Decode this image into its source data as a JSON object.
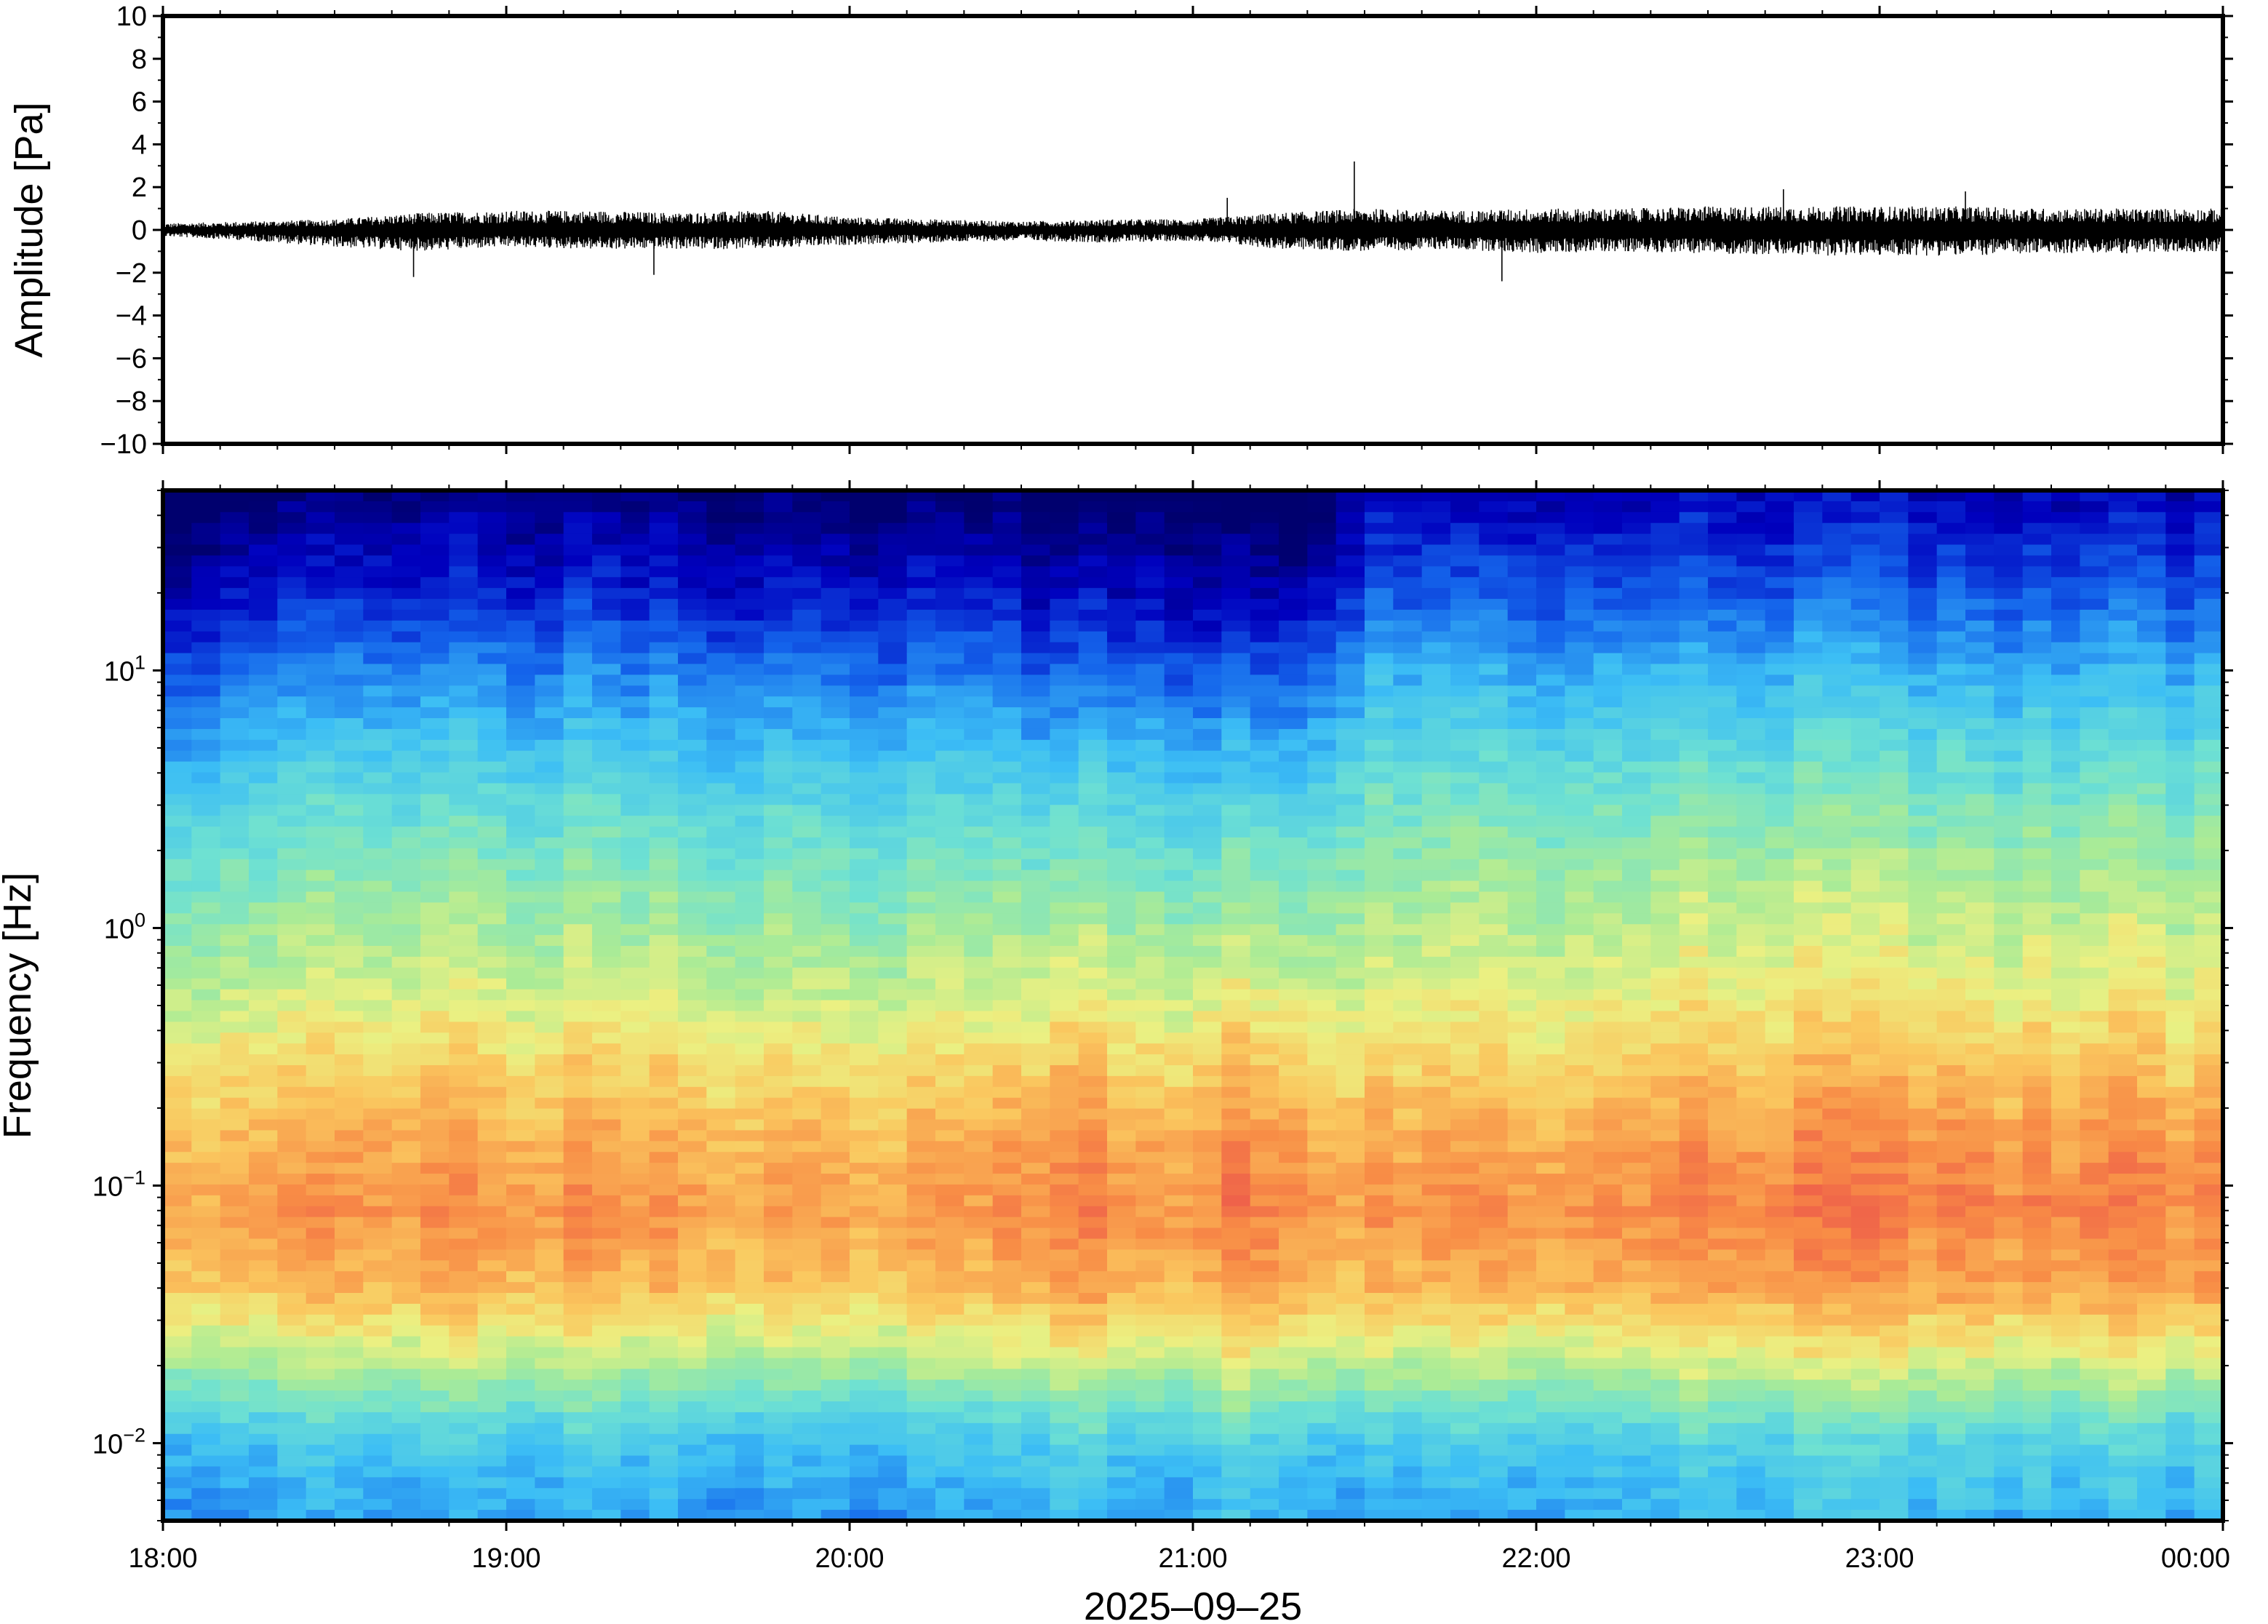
{
  "chart_data": [
    {
      "type": "line",
      "panel": "waveform",
      "ylabel": "Amplitude [Pa]",
      "ylim": [
        -10,
        10
      ],
      "yticks": [
        10,
        8,
        6,
        4,
        2,
        0,
        -2,
        -4,
        -6,
        -8,
        -10
      ],
      "ytick_labels": [
        "10",
        "8",
        "6",
        "4",
        "2",
        "0",
        "−2",
        "−4",
        "−6",
        "−8",
        "−10"
      ],
      "x_range": [
        "18:00",
        "00:00"
      ],
      "series": [
        {
          "color": "#000000",
          "x_hours": [
            0,
            0.25,
            0.5,
            0.75,
            1.0,
            1.25,
            1.5,
            1.75,
            2.0,
            2.25,
            2.5,
            2.75,
            3.0,
            3.25,
            3.5,
            3.75,
            4.0,
            4.25,
            4.5,
            4.75,
            5.0,
            5.25,
            5.5,
            5.75,
            6.0
          ],
          "envelope_max": [
            0.3,
            0.4,
            0.5,
            0.8,
            0.9,
            0.9,
            0.8,
            0.9,
            0.6,
            0.5,
            0.4,
            0.5,
            0.5,
            0.8,
            1.0,
            0.9,
            1.0,
            1.0,
            1.1,
            1.1,
            1.1,
            1.1,
            1.0,
            1.0,
            1.0
          ],
          "envelope_min": [
            -0.3,
            -0.5,
            -0.8,
            -1.0,
            -0.8,
            -0.9,
            -0.9,
            -0.9,
            -0.7,
            -0.6,
            -0.5,
            -0.6,
            -0.5,
            -0.9,
            -1.0,
            -0.9,
            -1.1,
            -1.0,
            -1.1,
            -1.2,
            -1.2,
            -1.2,
            -1.1,
            -1.1,
            -1.0
          ],
          "spikes": [
            {
              "x_hours": 3.47,
              "y": 3.2
            },
            {
              "x_hours": 0.73,
              "y": -2.2
            },
            {
              "x_hours": 1.43,
              "y": -2.1
            },
            {
              "x_hours": 3.1,
              "y": 1.5
            },
            {
              "x_hours": 3.9,
              "y": -2.4
            },
            {
              "x_hours": 4.72,
              "y": 1.9
            },
            {
              "x_hours": 5.25,
              "y": 1.8
            }
          ]
        }
      ]
    },
    {
      "type": "heatmap",
      "panel": "spectrogram",
      "ylabel": "Frequency [Hz]",
      "xlabel": "2025–09–25",
      "yscale": "log",
      "ylim": [
        0.005,
        50
      ],
      "yticks": [
        10,
        1,
        0.1,
        0.01
      ],
      "ytick_labels": [
        {
          "base": "10",
          "exp": "1"
        },
        {
          "base": "10",
          "exp": "0"
        },
        {
          "base": "10",
          "exp": "−1"
        },
        {
          "base": "10",
          "exp": "−2"
        }
      ],
      "xtick_labels": [
        "18:00",
        "19:00",
        "20:00",
        "21:00",
        "22:00",
        "23:00",
        "00:00"
      ],
      "colormap": "jet-like (dark blue → cyan → yellow → red)",
      "profile_log_freq": [
        -2.3,
        -2.0,
        -1.7,
        -1.4,
        -1.1,
        -0.8,
        -0.5,
        -0.2,
        0.1,
        0.4,
        0.7,
        1.0,
        1.3,
        1.7
      ],
      "profile_level": [
        0.28,
        0.35,
        0.55,
        0.72,
        0.78,
        0.74,
        0.66,
        0.58,
        0.52,
        0.45,
        0.36,
        0.26,
        0.14,
        0.02
      ],
      "time_modulation_hours": [
        0,
        0.3,
        0.6,
        1.0,
        1.5,
        2.0,
        2.4,
        2.6,
        2.9,
        3.1,
        3.3,
        3.4,
        3.5,
        4.0,
        4.5,
        5.0,
        5.5,
        6.0
      ],
      "time_modulation_low": [
        0.0,
        0.0,
        0.02,
        0.03,
        0.02,
        0.01,
        0.0,
        0.06,
        0.02,
        0.07,
        0.05,
        0.02,
        0.02,
        0.04,
        0.05,
        0.06,
        0.06,
        0.05
      ],
      "time_modulation_high": [
        -0.06,
        -0.02,
        0.0,
        0.01,
        0.0,
        -0.01,
        -0.03,
        -0.05,
        -0.03,
        -0.06,
        -0.05,
        -0.01,
        0.06,
        0.07,
        0.07,
        0.07,
        0.07,
        0.07
      ]
    }
  ],
  "colors": {
    "frame": "#000000",
    "waveform": "#000000",
    "background": "#ffffff"
  }
}
